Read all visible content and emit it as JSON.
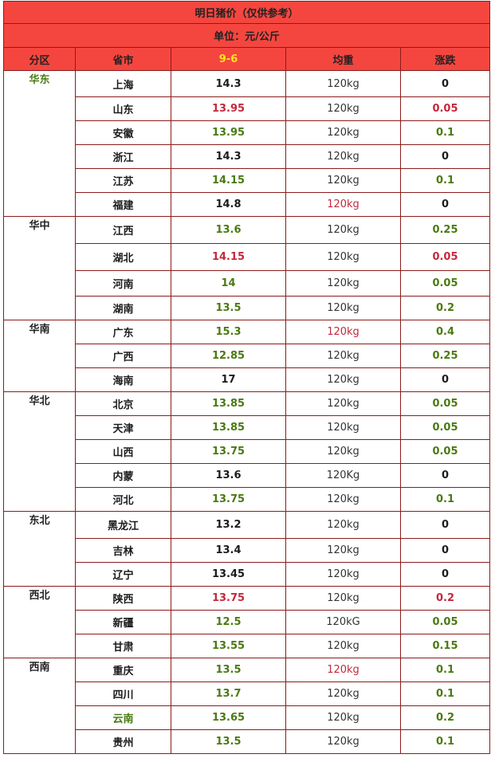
{
  "title": "明日猪价（仅供参考）",
  "unit": "单位：元/公斤",
  "columns": [
    "分区",
    "省市",
    "9-6",
    "均重",
    "涨跌"
  ],
  "colors": {
    "header_bg": "#f4463f",
    "date_text": "#ffe31a",
    "red": "#c5283d",
    "green": "#4a7a12",
    "border": "#8a1c1c"
  },
  "rows": [
    {
      "region": "华东",
      "region_color": "green",
      "span": 6,
      "province": "上海",
      "prov_color": "dark",
      "price": "14.3",
      "price_color": "dark",
      "weight": "120kg",
      "weight_color": "dark",
      "change": "0",
      "change_color": "dark"
    },
    {
      "province": "山东",
      "prov_color": "dark",
      "price": "13.95",
      "price_color": "red",
      "weight": "120kg",
      "weight_color": "dark",
      "change": "0.05",
      "change_color": "red"
    },
    {
      "province": "安徽",
      "prov_color": "dark",
      "price": "13.95",
      "price_color": "green",
      "weight": "120kg",
      "weight_color": "dark",
      "change": "0.1",
      "change_color": "green"
    },
    {
      "province": "浙江",
      "prov_color": "dark",
      "price": "14.3",
      "price_color": "dark",
      "weight": "120kg",
      "weight_color": "dark",
      "change": "0",
      "change_color": "dark"
    },
    {
      "province": "江苏",
      "prov_color": "dark",
      "price": "14.15",
      "price_color": "green",
      "weight": "120kg",
      "weight_color": "dark",
      "change": "0.1",
      "change_color": "green"
    },
    {
      "province": "福建",
      "prov_color": "dark",
      "price": "14.8",
      "price_color": "dark",
      "weight": "120kg",
      "weight_color": "red",
      "change": "0",
      "change_color": "dark"
    },
    {
      "region": "华中",
      "region_color": "dark",
      "span": 4,
      "province": "江西",
      "prov_color": "dark",
      "price": "13.6",
      "price_color": "green",
      "weight": "120kg",
      "weight_color": "dark",
      "change": "0.25",
      "change_color": "green"
    },
    {
      "province": "湖北",
      "prov_color": "dark",
      "price": "14.15",
      "price_color": "red",
      "weight": "120kg",
      "weight_color": "dark",
      "change": "0.05",
      "change_color": "red"
    },
    {
      "province": "河南",
      "prov_color": "dark",
      "price": "14",
      "price_color": "green",
      "weight": "120kg",
      "weight_color": "dark",
      "change": "0.05",
      "change_color": "green"
    },
    {
      "province": "湖南",
      "prov_color": "dark",
      "price": "13.5",
      "price_color": "green",
      "weight": "120kg",
      "weight_color": "dark",
      "change": "0.2",
      "change_color": "green"
    },
    {
      "region": "华南",
      "region_color": "dark",
      "span": 3,
      "province": "广东",
      "prov_color": "dark",
      "price": "15.3",
      "price_color": "green",
      "weight": "120kg",
      "weight_color": "red",
      "change": "0.4",
      "change_color": "green"
    },
    {
      "province": "广西",
      "prov_color": "dark",
      "price": "12.85",
      "price_color": "green",
      "weight": "120kg",
      "weight_color": "dark",
      "change": "0.25",
      "change_color": "green"
    },
    {
      "province": "海南",
      "prov_color": "dark",
      "price": "17",
      "price_color": "dark",
      "weight": "120kg",
      "weight_color": "dark",
      "change": "0",
      "change_color": "dark"
    },
    {
      "region": "华北",
      "region_color": "dark",
      "span": 5,
      "province": "北京",
      "prov_color": "dark",
      "price": "13.85",
      "price_color": "green",
      "weight": "120kg",
      "weight_color": "dark",
      "change": "0.05",
      "change_color": "green"
    },
    {
      "province": "天津",
      "prov_color": "dark",
      "price": "13.85",
      "price_color": "green",
      "weight": "120kg",
      "weight_color": "dark",
      "change": "0.05",
      "change_color": "green"
    },
    {
      "province": "山西",
      "prov_color": "dark",
      "price": "13.75",
      "price_color": "green",
      "weight": "120kg",
      "weight_color": "dark",
      "change": "0.05",
      "change_color": "green"
    },
    {
      "province": "内蒙",
      "prov_color": "dark",
      "price": "13.6",
      "price_color": "dark",
      "weight": "120Kg",
      "weight_color": "dark",
      "change": "0",
      "change_color": "dark"
    },
    {
      "province": "河北",
      "prov_color": "dark",
      "price": "13.75",
      "price_color": "green",
      "weight": "120kg",
      "weight_color": "dark",
      "change": "0.1",
      "change_color": "green"
    },
    {
      "region": "东北",
      "region_color": "dark",
      "span": 3,
      "province": "黑龙江",
      "prov_color": "dark",
      "price": "13.2",
      "price_color": "dark",
      "weight": "120kg",
      "weight_color": "dark",
      "change": "0",
      "change_color": "dark"
    },
    {
      "province": "吉林",
      "prov_color": "dark",
      "price": "13.4",
      "price_color": "dark",
      "weight": "120kg",
      "weight_color": "dark",
      "change": "0",
      "change_color": "dark"
    },
    {
      "province": "辽宁",
      "prov_color": "dark",
      "price": "13.45",
      "price_color": "dark",
      "weight": "120kg",
      "weight_color": "dark",
      "change": "0",
      "change_color": "dark"
    },
    {
      "region": "西北",
      "region_color": "dark",
      "span": 3,
      "province": "陕西",
      "prov_color": "dark",
      "price": "13.75",
      "price_color": "red",
      "weight": "120kg",
      "weight_color": "dark",
      "change": "0.2",
      "change_color": "red"
    },
    {
      "province": "新疆",
      "prov_color": "dark",
      "price": "12.5",
      "price_color": "green",
      "weight": "120kG",
      "weight_color": "dark",
      "change": "0.05",
      "change_color": "green"
    },
    {
      "province": "甘肃",
      "prov_color": "dark",
      "price": "13.55",
      "price_color": "green",
      "weight": "120kg",
      "weight_color": "dark",
      "change": "0.15",
      "change_color": "green"
    },
    {
      "region": "西南",
      "region_color": "dark",
      "span": 4,
      "province": "重庆",
      "prov_color": "dark",
      "price": "13.5",
      "price_color": "green",
      "weight": "120kg",
      "weight_color": "red",
      "change": "0.1",
      "change_color": "green"
    },
    {
      "province": "四川",
      "prov_color": "dark",
      "price": "13.7",
      "price_color": "green",
      "weight": "120kg",
      "weight_color": "dark",
      "change": "0.1",
      "change_color": "green"
    },
    {
      "province": "云南",
      "prov_color": "green",
      "price": "13.65",
      "price_color": "green",
      "weight": "120kg",
      "weight_color": "dark",
      "change": "0.2",
      "change_color": "green"
    },
    {
      "province": "贵州",
      "prov_color": "dark",
      "price": "13.5",
      "price_color": "green",
      "weight": "120kg",
      "weight_color": "dark",
      "change": "0.1",
      "change_color": "green"
    }
  ]
}
